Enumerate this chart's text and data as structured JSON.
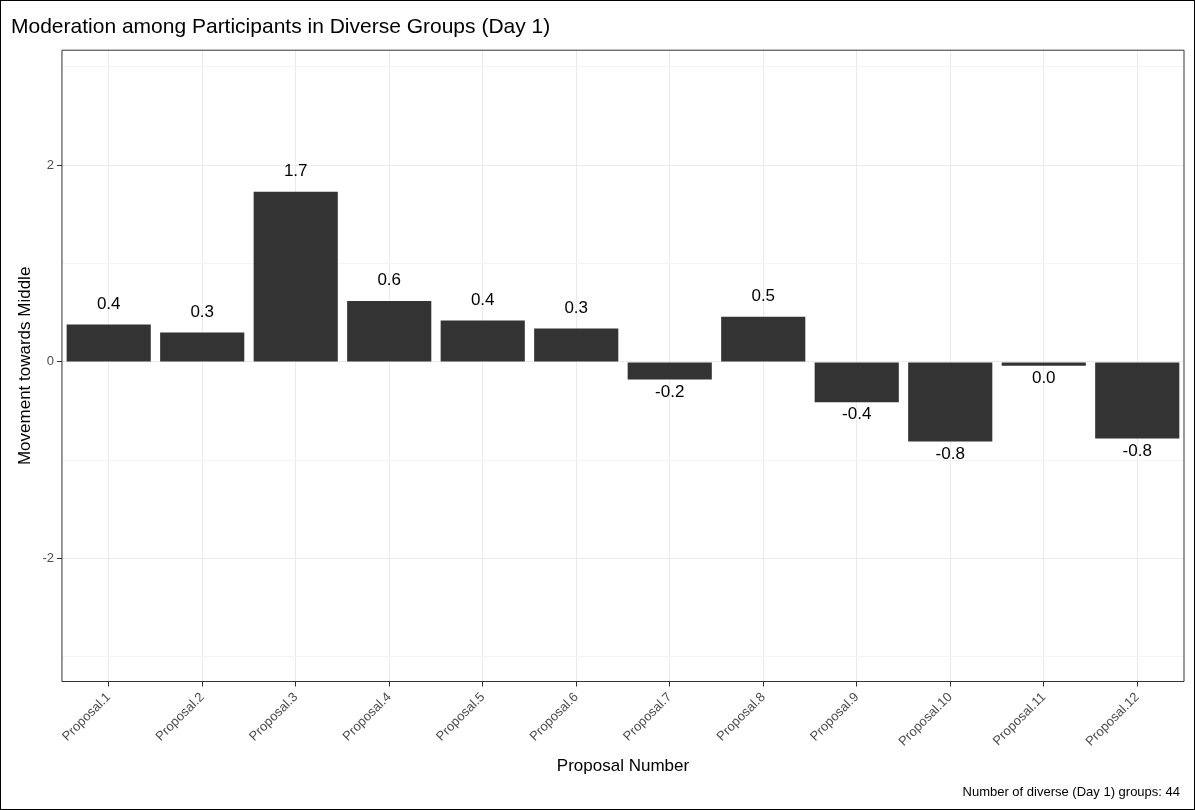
{
  "chart_data": {
    "type": "bar",
    "title": "Moderation among Participants in Diverse Groups (Day 1)",
    "xlabel": "Proposal Number",
    "ylabel": "Movement towards Middle",
    "categories": [
      "Proposal.1",
      "Proposal.2",
      "Proposal.3",
      "Proposal.4",
      "Proposal.5",
      "Proposal.6",
      "Proposal.7",
      "Proposal.8",
      "Proposal.9",
      "Proposal.10",
      "Proposal.11",
      "Proposal.12"
    ],
    "values": [
      0.38,
      0.3,
      1.73,
      0.62,
      0.42,
      0.34,
      -0.18,
      0.46,
      -0.41,
      -0.81,
      -0.04,
      -0.78
    ],
    "value_labels": [
      "0.4",
      "0.3",
      "1.7",
      "0.6",
      "0.4",
      "0.3",
      "-0.2",
      "0.5",
      "-0.4",
      "-0.8",
      "0.0",
      "-0.8"
    ],
    "color": "#333333",
    "ylim": [
      -3.25,
      3.17
    ],
    "yticks": [
      {
        "value": -3,
        "label": null
      },
      -2,
      {
        "value": -1,
        "label": null
      },
      0,
      {
        "value": 1,
        "label": null
      },
      2,
      {
        "value": 3,
        "label": null
      }
    ],
    "grid": true,
    "legend": false,
    "annotations": [
      "Number of diverse (Day 1) groups:  44"
    ]
  }
}
